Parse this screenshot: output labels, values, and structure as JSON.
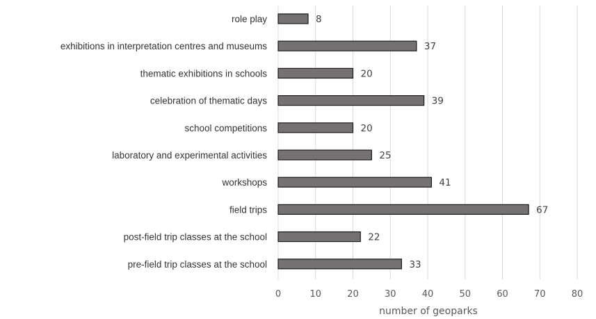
{
  "chart_data": {
    "type": "bar",
    "orientation": "horizontal",
    "categories": [
      "role play",
      "exhibitions in interpretation centres and museums",
      "thematic exhibitions in schools",
      "celebration of thematic days",
      "school competitions",
      "laboratory and experimental activities",
      "workshops",
      "field trips",
      "post-field trip classes at the school",
      "pre-field trip classes at the school"
    ],
    "values": [
      8,
      37,
      20,
      39,
      20,
      25,
      41,
      67,
      22,
      33
    ],
    "xlabel": "number of geoparks",
    "ylabel": "",
    "xlim": [
      0,
      80
    ],
    "xticks": [
      0,
      10,
      20,
      30,
      40,
      50,
      60,
      70,
      80
    ],
    "grid": true,
    "data_labels": true,
    "bar_color": "#767171",
    "bar_edge_color": "#1a1a1a",
    "gridline_color": "#d9d9d9"
  }
}
